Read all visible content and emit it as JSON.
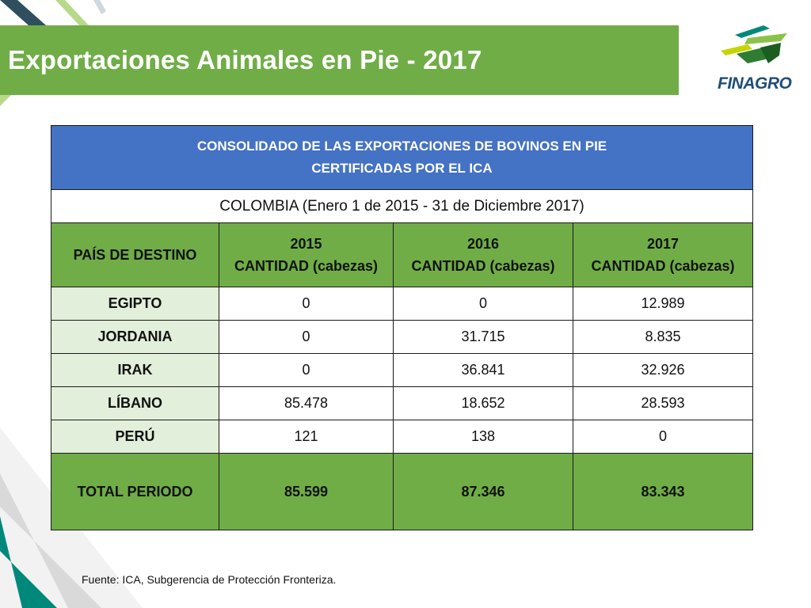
{
  "page": {
    "title": "Exportaciones Animales en Pie - 2017",
    "logo_text": "FINAGRO",
    "source": "Fuente: ICA, Subgerencia de Protección Fronteriza."
  },
  "colors": {
    "title_bar": "#70ad47",
    "table_header": "#4472c4",
    "country_cell": "#e2efda",
    "total_row": "#70ad47",
    "corner_teal": "#00897b"
  },
  "table": {
    "header_line1": "CONSOLIDADO DE LAS EXPORTACIONES DE BOVINOS EN PIE",
    "header_line2": "CERTIFICADAS POR EL ICA",
    "subheader": "COLOMBIA  (Enero 1 de 2015 - 31 de Diciembre 2017)",
    "columns": [
      {
        "line1": "PAÍS DE DESTINO",
        "line2": ""
      },
      {
        "line1": "2015",
        "line2": "CANTIDAD (cabezas)"
      },
      {
        "line1": "2016",
        "line2": "CANTIDAD (cabezas)"
      },
      {
        "line1": "2017",
        "line2": "CANTIDAD (cabezas)"
      }
    ],
    "rows": [
      {
        "country": "EGIPTO",
        "y2015": "0",
        "y2016": "0",
        "y2017": "12.989"
      },
      {
        "country": "JORDANIA",
        "y2015": "0",
        "y2016": "31.715",
        "y2017": "8.835"
      },
      {
        "country": "IRAK",
        "y2015": "0",
        "y2016": "36.841",
        "y2017": "32.926"
      },
      {
        "country": "LÍBANO",
        "y2015": "85.478",
        "y2016": "18.652",
        "y2017": "28.593"
      },
      {
        "country": "PERÚ",
        "y2015": "121",
        "y2016": "138",
        "y2017": "0"
      }
    ],
    "total": {
      "label": "TOTAL PERIODO",
      "y2015": "85.599",
      "y2016": "87.346",
      "y2017": "83.343"
    }
  }
}
